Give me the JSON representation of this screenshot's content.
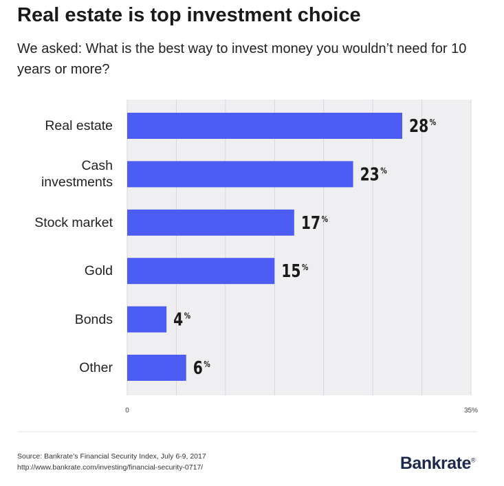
{
  "chart_data": {
    "type": "hbar",
    "title": "Real estate is top investment choice",
    "subtitle": "We asked: What is the best way to invest money you wouldn’t need for 10 years or more?",
    "categories": [
      "Real estate",
      "Cash investments",
      "Stock market",
      "Gold",
      "Bonds",
      "Other"
    ],
    "values": [
      28,
      23,
      17,
      15,
      4,
      6
    ],
    "value_labels": [
      "28%",
      "23%",
      "17%",
      "15%",
      "4%",
      "6%"
    ],
    "color": "#4d5cf2",
    "xlim": [
      0,
      35
    ],
    "xticks": [
      0,
      {
        "value": 35,
        "label": "35%"
      }
    ],
    "xgrid": [
      0,
      5,
      10,
      15,
      20,
      25,
      30,
      35
    ],
    "grid": true,
    "source": "Source: Bankrate’s Financial Security Index, July 6-9, 2017",
    "source_url": "http://www.bankrate.com/investing/financial-security-0717/",
    "logo": "Bankrate"
  }
}
